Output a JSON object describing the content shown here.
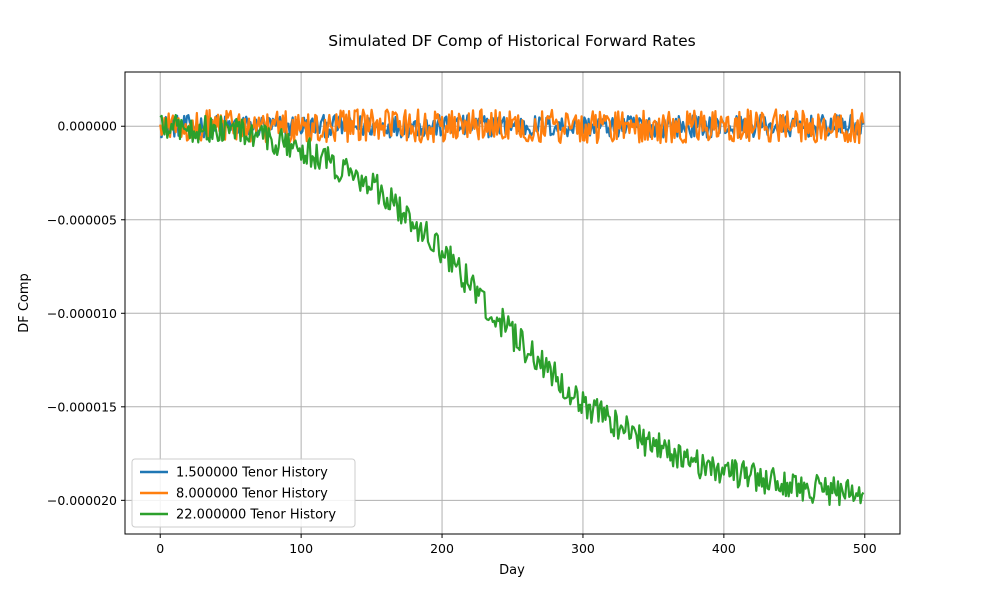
{
  "chart_data": {
    "type": "line",
    "title": "Simulated DF Comp of Historical Forward Rates",
    "xlabel": "Day",
    "ylabel": "DF Comp",
    "xlim": [
      -25,
      525
    ],
    "ylim": [
      -2.18e-05,
      2.9e-06
    ],
    "xticks": [
      0,
      100,
      200,
      300,
      400,
      500
    ],
    "xtick_labels": [
      "0",
      "100",
      "200",
      "300",
      "400",
      "500"
    ],
    "yticks": [
      0.0,
      -5e-06,
      -1e-05,
      -1.5e-05,
      -2e-05
    ],
    "ytick_labels": [
      "0.000000",
      "−0.000005",
      "−0.000010",
      "−0.000015",
      "−0.000020"
    ],
    "grid": true,
    "legend_position": "lower-left",
    "x_range": [
      0,
      499
    ],
    "series": [
      {
        "name": "1.500000 Tenor History",
        "color": "#1f77b4",
        "mean": 0.0,
        "noise_amplitude": 6e-07,
        "trend": "flat"
      },
      {
        "name": "8.000000 Tenor History",
        "color": "#ff7f0e",
        "mean": 0.0,
        "noise_amplitude": 9e-07,
        "trend": "flat"
      },
      {
        "name": "22.000000 Tenor History",
        "color": "#2ca02c",
        "noise_amplitude": 8e-07,
        "trend": "sigmoid decline",
        "anchor_days": [
          0,
          50,
          100,
          150,
          200,
          250,
          300,
          350,
          400,
          450,
          499
        ],
        "anchor_values": [
          0.0,
          -2e-07,
          -1.2e-06,
          -3e-06,
          -6.6e-06,
          -1.12e-05,
          -1.48e-05,
          -1.71e-05,
          -1.85e-05,
          -1.92e-05,
          -1.98e-05
        ]
      }
    ]
  }
}
